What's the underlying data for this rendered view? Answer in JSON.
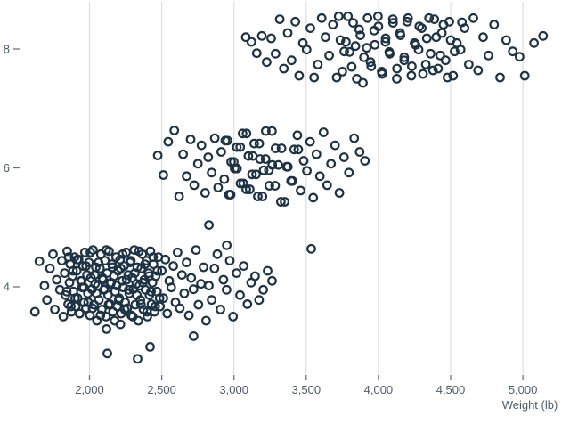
{
  "chart_data": {
    "type": "scatter",
    "title": "",
    "xlabel": "Weight (lb)",
    "ylabel": "",
    "x_ticks": [
      {
        "value": 2000,
        "label": "2,000"
      },
      {
        "value": 2500,
        "label": "2,500"
      },
      {
        "value": 3000,
        "label": "3,000"
      },
      {
        "value": 3500,
        "label": "3,500"
      },
      {
        "value": 4000,
        "label": "4,000"
      },
      {
        "value": 4500,
        "label": "4,500"
      },
      {
        "value": 5000,
        "label": "5,000"
      }
    ],
    "y_ticks": [
      {
        "value": 4,
        "label": "4"
      },
      {
        "value": 6,
        "label": "6"
      },
      {
        "value": 8,
        "label": "8"
      }
    ],
    "xlim": [
      1380,
      5310
    ],
    "ylim": [
      2.45,
      8.85
    ],
    "grid": "vertical gridlines at x ticks only",
    "legend": "none",
    "marker": {
      "shape": "open-circle",
      "radius_px": 4.3,
      "stroke_width_px": 2.2,
      "fill": "none"
    },
    "colors": {
      "point_stroke": "#1d3345",
      "axis_text": "#4e5b6c",
      "gridline": "#dcdee1",
      "tick_mark": "#67727f",
      "background": "#ffffff"
    },
    "points": [
      [
        1622,
        3.58
      ],
      [
        1653,
        4.43
      ],
      [
        2118,
        3.29
      ],
      [
        2214,
        3.37
      ],
      [
        1688,
        4.02
      ],
      [
        1705,
        3.78
      ],
      [
        1726,
        4.31
      ],
      [
        1747,
        4.55
      ],
      [
        1760,
        3.62
      ],
      [
        1773,
        4.12
      ],
      [
        1795,
        3.95
      ],
      [
        1808,
        4.44
      ],
      [
        1819,
        3.5
      ],
      [
        1828,
        4.23
      ],
      [
        1834,
        3.86
      ],
      [
        1846,
        4.6
      ],
      [
        1852,
        3.71
      ],
      [
        1861,
        4.07
      ],
      [
        1867,
        4.38
      ],
      [
        1875,
        3.58
      ],
      [
        1883,
        4.18
      ],
      [
        1889,
        3.92
      ],
      [
        1897,
        4.5
      ],
      [
        1905,
        3.67
      ],
      [
        1912,
        4.27
      ],
      [
        1918,
        3.81
      ],
      [
        1925,
        4.46
      ],
      [
        1932,
        3.55
      ],
      [
        1940,
        4.1
      ],
      [
        1948,
        3.99
      ],
      [
        1955,
        4.35
      ],
      [
        1962,
        3.74
      ],
      [
        1968,
        4.58
      ],
      [
        1975,
        3.64
      ],
      [
        1982,
        4.2
      ],
      [
        1989,
        3.89
      ],
      [
        1996,
        4.41
      ],
      [
        2003,
        3.52
      ],
      [
        2010,
        4.15
      ],
      [
        2017,
        3.96
      ],
      [
        2024,
        4.62
      ],
      [
        2031,
        3.7
      ],
      [
        2038,
        4.05
      ],
      [
        2044,
        4.33
      ],
      [
        2051,
        3.43
      ],
      [
        2058,
        4.02
      ],
      [
        2065,
        3.78
      ],
      [
        2072,
        4.31
      ],
      [
        2079,
        4.55
      ],
      [
        2086,
        3.62
      ],
      [
        2093,
        4.12
      ],
      [
        2100,
        3.95
      ],
      [
        2107,
        4.44
      ],
      [
        2114,
        3.5
      ],
      [
        2121,
        4.23
      ],
      [
        2128,
        3.86
      ],
      [
        2135,
        4.6
      ],
      [
        2142,
        3.71
      ],
      [
        2149,
        4.07
      ],
      [
        2156,
        4.38
      ],
      [
        2163,
        3.58
      ],
      [
        2170,
        4.18
      ],
      [
        2177,
        3.92
      ],
      [
        2184,
        4.5
      ],
      [
        2191,
        3.67
      ],
      [
        2198,
        4.27
      ],
      [
        2205,
        3.81
      ],
      [
        2212,
        4.46
      ],
      [
        2219,
        3.55
      ],
      [
        2226,
        4.1
      ],
      [
        2233,
        3.99
      ],
      [
        2240,
        4.35
      ],
      [
        2247,
        3.74
      ],
      [
        2254,
        4.58
      ],
      [
        2261,
        3.64
      ],
      [
        2268,
        4.2
      ],
      [
        2275,
        3.89
      ],
      [
        2282,
        4.41
      ],
      [
        2289,
        3.52
      ],
      [
        2296,
        4.15
      ],
      [
        2303,
        3.96
      ],
      [
        2310,
        4.62
      ],
      [
        2317,
        3.7
      ],
      [
        2324,
        4.05
      ],
      [
        2331,
        4.33
      ],
      [
        2338,
        3.43
      ],
      [
        2345,
        4.02
      ],
      [
        2352,
        3.78
      ],
      [
        2359,
        4.31
      ],
      [
        2366,
        4.55
      ],
      [
        2373,
        3.62
      ],
      [
        2380,
        4.12
      ],
      [
        2387,
        3.95
      ],
      [
        2394,
        4.44
      ],
      [
        2401,
        3.5
      ],
      [
        2408,
        4.23
      ],
      [
        2415,
        3.86
      ],
      [
        2422,
        4.6
      ],
      [
        2429,
        3.71
      ],
      [
        2436,
        4.07
      ],
      [
        2443,
        4.38
      ],
      [
        2450,
        3.58
      ],
      [
        2458,
        4.18
      ],
      [
        2467,
        3.92
      ],
      [
        2477,
        4.5
      ],
      [
        2488,
        3.67
      ],
      [
        2500,
        4.27
      ],
      [
        2512,
        3.81
      ],
      [
        2525,
        4.46
      ],
      [
        2538,
        3.55
      ],
      [
        2552,
        4.1
      ],
      [
        2566,
        3.99
      ],
      [
        2580,
        4.35
      ],
      [
        2595,
        3.74
      ],
      [
        2610,
        4.58
      ],
      [
        2625,
        3.64
      ],
      [
        2640,
        4.2
      ],
      [
        2656,
        3.89
      ],
      [
        2672,
        4.41
      ],
      [
        2688,
        3.52
      ],
      [
        2704,
        4.15
      ],
      [
        2720,
        3.96
      ],
      [
        2737,
        4.62
      ],
      [
        2754,
        3.7
      ],
      [
        2771,
        4.05
      ],
      [
        2789,
        4.33
      ],
      [
        2807,
        3.43
      ],
      [
        2826,
        4.02
      ],
      [
        2845,
        3.78
      ],
      [
        2865,
        4.31
      ],
      [
        2885,
        4.55
      ],
      [
        2906,
        3.62
      ],
      [
        2927,
        4.12
      ],
      [
        2949,
        3.95
      ],
      [
        2971,
        4.44
      ],
      [
        2994,
        3.5
      ],
      [
        3018,
        4.23
      ],
      [
        3042,
        3.86
      ],
      [
        3067,
        4.35
      ],
      [
        3093,
        3.71
      ],
      [
        3119,
        4.07
      ],
      [
        3146,
        4.18
      ],
      [
        3174,
        3.78
      ],
      [
        3203,
        3.95
      ],
      [
        3233,
        4.27
      ],
      [
        3264,
        4.1
      ],
      [
        1842,
        3.92
      ],
      [
        1856,
        4.5
      ],
      [
        1871,
        3.67
      ],
      [
        1886,
        4.27
      ],
      [
        1901,
        3.81
      ],
      [
        1916,
        4.46
      ],
      [
        1931,
        3.55
      ],
      [
        1946,
        4.1
      ],
      [
        1961,
        3.99
      ],
      [
        1976,
        4.35
      ],
      [
        1991,
        3.74
      ],
      [
        2006,
        4.58
      ],
      [
        2021,
        3.64
      ],
      [
        2036,
        4.2
      ],
      [
        2048,
        3.89
      ],
      [
        2062,
        4.41
      ],
      [
        2076,
        3.52
      ],
      [
        2090,
        4.15
      ],
      [
        2104,
        3.96
      ],
      [
        2116,
        4.62
      ],
      [
        2132,
        3.7
      ],
      [
        2146,
        4.05
      ],
      [
        2160,
        4.33
      ],
      [
        2174,
        3.43
      ],
      [
        2188,
        4.02
      ],
      [
        2202,
        3.78
      ],
      [
        2216,
        4.31
      ],
      [
        2230,
        4.55
      ],
      [
        2244,
        3.62
      ],
      [
        2258,
        4.12
      ],
      [
        2272,
        3.95
      ],
      [
        2286,
        4.44
      ],
      [
        2300,
        3.5
      ],
      [
        2314,
        4.23
      ],
      [
        2328,
        3.86
      ],
      [
        2342,
        4.6
      ],
      [
        2356,
        3.71
      ],
      [
        2370,
        4.07
      ],
      [
        2384,
        4.38
      ],
      [
        2398,
        3.58
      ],
      [
        2412,
        4.18
      ],
      [
        2426,
        3.92
      ],
      [
        2440,
        4.5
      ],
      [
        2455,
        3.67
      ],
      [
        2470,
        4.27
      ],
      [
        2485,
        3.81
      ],
      [
        2123,
        2.88
      ],
      [
        2333,
        2.79
      ],
      [
        2419,
        2.99
      ],
      [
        2721,
        3.17
      ],
      [
        2827,
        5.04
      ],
      [
        2950,
        4.7
      ],
      [
        3535,
        4.64
      ],
      [
        2472,
        6.21
      ],
      [
        2511,
        5.88
      ],
      [
        2545,
        6.44
      ],
      [
        2587,
        6.63
      ],
      [
        2620,
        5.52
      ],
      [
        2648,
        6.23
      ],
      [
        2672,
        5.86
      ],
      [
        2700,
        6.48
      ],
      [
        2725,
        5.71
      ],
      [
        2750,
        6.07
      ],
      [
        2775,
        6.38
      ],
      [
        2800,
        5.58
      ],
      [
        2822,
        6.18
      ],
      [
        2845,
        5.92
      ],
      [
        2867,
        6.5
      ],
      [
        2890,
        5.67
      ],
      [
        2912,
        6.27
      ],
      [
        2933,
        5.81
      ],
      [
        2955,
        6.46
      ],
      [
        2977,
        5.55
      ],
      [
        2999,
        6.1
      ],
      [
        3021,
        5.99
      ],
      [
        3043,
        6.35
      ],
      [
        3065,
        5.74
      ],
      [
        3087,
        6.58
      ],
      [
        3109,
        5.64
      ],
      [
        3131,
        6.2
      ],
      [
        3153,
        5.89
      ],
      [
        3175,
        6.41
      ],
      [
        3197,
        5.52
      ],
      [
        3219,
        6.15
      ],
      [
        3241,
        5.96
      ],
      [
        3263,
        6.62
      ],
      [
        3285,
        5.7
      ],
      [
        3307,
        6.05
      ],
      [
        3329,
        6.33
      ],
      [
        3351,
        5.43
      ],
      [
        3373,
        6.02
      ],
      [
        3395,
        5.78
      ],
      [
        3417,
        6.31
      ],
      [
        3439,
        6.55
      ],
      [
        3461,
        5.62
      ],
      [
        3483,
        6.12
      ],
      [
        3505,
        5.95
      ],
      [
        3527,
        6.44
      ],
      [
        3549,
        5.5
      ],
      [
        3571,
        6.23
      ],
      [
        3595,
        5.86
      ],
      [
        3620,
        6.6
      ],
      [
        3645,
        5.71
      ],
      [
        3672,
        6.07
      ],
      [
        3700,
        6.38
      ],
      [
        3730,
        5.58
      ],
      [
        3762,
        6.18
      ],
      [
        3796,
        5.92
      ],
      [
        3832,
        6.5
      ],
      [
        3870,
        6.27
      ],
      [
        3907,
        6.12
      ],
      [
        2940,
        6.46
      ],
      [
        2965,
        5.55
      ],
      [
        2980,
        6.1
      ],
      [
        3005,
        5.99
      ],
      [
        3020,
        6.35
      ],
      [
        3045,
        5.74
      ],
      [
        3060,
        6.58
      ],
      [
        3085,
        5.64
      ],
      [
        3100,
        6.2
      ],
      [
        3125,
        5.89
      ],
      [
        3140,
        6.41
      ],
      [
        3165,
        5.52
      ],
      [
        3180,
        6.15
      ],
      [
        3205,
        5.96
      ],
      [
        3220,
        6.62
      ],
      [
        3245,
        5.7
      ],
      [
        3265,
        6.05
      ],
      [
        3288,
        6.33
      ],
      [
        3325,
        5.43
      ],
      [
        3365,
        6.02
      ],
      [
        3405,
        5.78
      ],
      [
        3445,
        6.31
      ],
      [
        3082,
        8.2
      ],
      [
        3121,
        8.12
      ],
      [
        3158,
        7.93
      ],
      [
        3193,
        8.22
      ],
      [
        3226,
        7.78
      ],
      [
        3258,
        8.18
      ],
      [
        3288,
        7.92
      ],
      [
        3317,
        8.5
      ],
      [
        3345,
        7.67
      ],
      [
        3372,
        8.27
      ],
      [
        3399,
        7.81
      ],
      [
        3425,
        8.46
      ],
      [
        3451,
        7.55
      ],
      [
        3477,
        8.1
      ],
      [
        3503,
        7.99
      ],
      [
        3529,
        8.35
      ],
      [
        3555,
        7.52
      ],
      [
        3581,
        7.74
      ],
      [
        3607,
        8.52
      ],
      [
        3633,
        8.2
      ],
      [
        3659,
        7.89
      ],
      [
        3685,
        8.41
      ],
      [
        3711,
        7.52
      ],
      [
        3737,
        8.15
      ],
      [
        3763,
        7.96
      ],
      [
        3789,
        8.55
      ],
      [
        3815,
        7.7
      ],
      [
        3841,
        8.05
      ],
      [
        3867,
        8.33
      ],
      [
        3893,
        7.43
      ],
      [
        3919,
        8.02
      ],
      [
        3945,
        7.78
      ],
      [
        3971,
        8.31
      ],
      [
        3997,
        8.55
      ],
      [
        4023,
        7.62
      ],
      [
        4049,
        8.12
      ],
      [
        4075,
        7.95
      ],
      [
        4101,
        8.44
      ],
      [
        4127,
        7.5
      ],
      [
        4153,
        8.23
      ],
      [
        4179,
        7.86
      ],
      [
        4205,
        8.52
      ],
      [
        4231,
        7.71
      ],
      [
        4257,
        8.07
      ],
      [
        4283,
        8.38
      ],
      [
        4309,
        7.58
      ],
      [
        4335,
        8.18
      ],
      [
        4361,
        7.92
      ],
      [
        4387,
        8.5
      ],
      [
        4413,
        7.67
      ],
      [
        4439,
        8.27
      ],
      [
        4465,
        7.81
      ],
      [
        4491,
        8.46
      ],
      [
        4517,
        7.55
      ],
      [
        4543,
        8.1
      ],
      [
        4569,
        7.99
      ],
      [
        4597,
        8.35
      ],
      [
        4626,
        7.74
      ],
      [
        4657,
        8.52
      ],
      [
        4690,
        7.64
      ],
      [
        4725,
        8.2
      ],
      [
        4762,
        7.89
      ],
      [
        4801,
        8.41
      ],
      [
        4842,
        7.52
      ],
      [
        4885,
        8.15
      ],
      [
        4930,
        7.96
      ],
      [
        4977,
        7.87
      ],
      [
        5013,
        7.55
      ],
      [
        5077,
        8.1
      ],
      [
        5140,
        8.22
      ],
      [
        3725,
        8.55
      ],
      [
        3750,
        7.62
      ],
      [
        3775,
        8.12
      ],
      [
        3800,
        7.95
      ],
      [
        3825,
        8.44
      ],
      [
        3850,
        7.5
      ],
      [
        3875,
        8.23
      ],
      [
        3900,
        7.86
      ],
      [
        3925,
        8.52
      ],
      [
        3950,
        7.71
      ],
      [
        3975,
        8.07
      ],
      [
        4000,
        8.38
      ],
      [
        4025,
        7.58
      ],
      [
        4050,
        8.18
      ],
      [
        4078,
        7.92
      ],
      [
        4100,
        8.5
      ],
      [
        4128,
        7.67
      ],
      [
        4150,
        8.27
      ],
      [
        4178,
        7.81
      ],
      [
        4200,
        8.46
      ],
      [
        4228,
        7.55
      ],
      [
        4250,
        8.1
      ],
      [
        4278,
        7.99
      ],
      [
        4300,
        8.35
      ],
      [
        4328,
        7.74
      ],
      [
        4350,
        8.52
      ],
      [
        4378,
        7.64
      ],
      [
        4400,
        8.2
      ],
      [
        4428,
        7.89
      ],
      [
        4450,
        8.41
      ],
      [
        4478,
        7.52
      ],
      [
        4500,
        8.15
      ],
      [
        4528,
        7.96
      ],
      [
        4578,
        8.45
      ]
    ]
  }
}
